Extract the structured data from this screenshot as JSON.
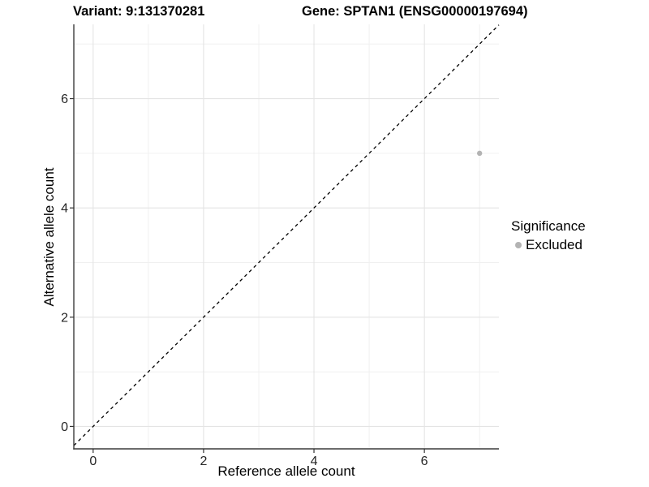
{
  "header": {
    "variant_title": "Variant: 9:131370281",
    "gene_title": "Gene: SPTAN1 (ENSG00000197694)"
  },
  "legend": {
    "title": "Significance",
    "items": [
      {
        "label": "Excluded",
        "color": "#b3b3b3"
      }
    ]
  },
  "chart_data": {
    "type": "scatter",
    "title": "Variant: 9:131370281  /  Gene: SPTAN1 (ENSG00000197694)",
    "xlabel": "Reference allele count",
    "ylabel": "Alternative allele count",
    "x_ticks": [
      0,
      2,
      4,
      6
    ],
    "y_ticks": [
      0,
      2,
      4,
      6
    ],
    "x_minor_ticks": [
      1,
      3,
      5,
      7
    ],
    "y_minor_ticks": [
      1,
      3,
      5,
      7
    ],
    "xlim": [
      -0.35,
      7.35
    ],
    "ylim": [
      -0.41,
      7.36
    ],
    "points": [
      {
        "x": 7,
        "y": 5,
        "series": "Excluded",
        "color": "#b3b3b3"
      }
    ],
    "reference_line": {
      "type": "identity",
      "slope": 1,
      "intercept": 0,
      "style": "dashed",
      "color": "#000000"
    },
    "grid": {
      "major": "#e4e4e4",
      "minor": "#f0f0f0"
    },
    "axis_line_color": "#3c3c3c",
    "tick_color": "#333333",
    "tick_label_color": "#262626",
    "legend_position": "right",
    "background": "#ffffff"
  }
}
